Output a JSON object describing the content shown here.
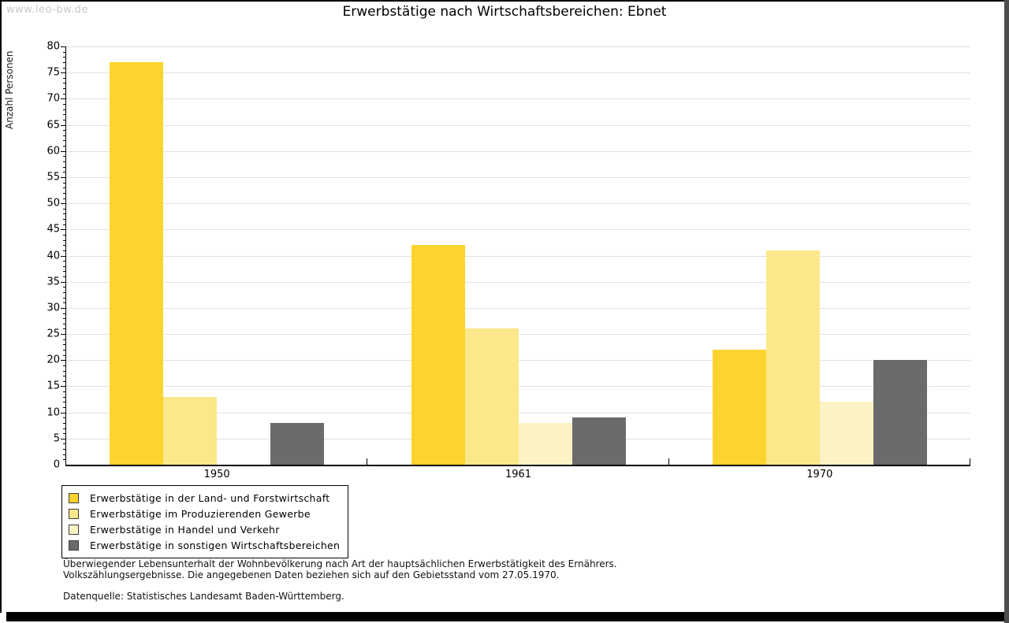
{
  "header": {
    "url": "www.leo-bw.de"
  },
  "chart_data": {
    "type": "bar",
    "title": "Erwerbstätige nach Wirtschaftsbereichen: Ebnet",
    "ylabel": "Anzahl Personen",
    "xlabel": "",
    "categories": [
      "1950",
      "1961",
      "1970"
    ],
    "series": [
      {
        "name": "Erwerbstätige in der Land- und Forstwirtschaft",
        "color": "#fdd32e",
        "values": [
          77,
          42,
          22
        ]
      },
      {
        "name": "Erwerbstätige im Produzierenden Gewerbe",
        "color": "#fce88a",
        "values": [
          13,
          26,
          41
        ]
      },
      {
        "name": "Erwerbstätige in Handel und Verkehr",
        "color": "#fbf3c3",
        "values": [
          0,
          8,
          12
        ]
      },
      {
        "name": "Erwerbstätige in sonstigen Wirtschaftsbereichen",
        "color": "#6b6b6b",
        "values": [
          8,
          9,
          20
        ]
      }
    ],
    "ylim": [
      0,
      80
    ],
    "ytick_step": 5,
    "yminor_step": 1,
    "grid": true,
    "gridline_color": "#e0e0e0",
    "legend_position": "bottom-left"
  },
  "footnotes": {
    "line1": "Überwiegender Lebensunterhalt der Wohnbevölkerung nach Art der hauptsächlichen Erwerbstätigkeit des Ernährers.",
    "line2": "Volkszählungsergebnisse. Die angegebenen Daten beziehen sich auf den Gebietsstand vom 27.05.1970.",
    "source": "Datenquelle: Statistisches Landesamt Baden-Württemberg."
  }
}
